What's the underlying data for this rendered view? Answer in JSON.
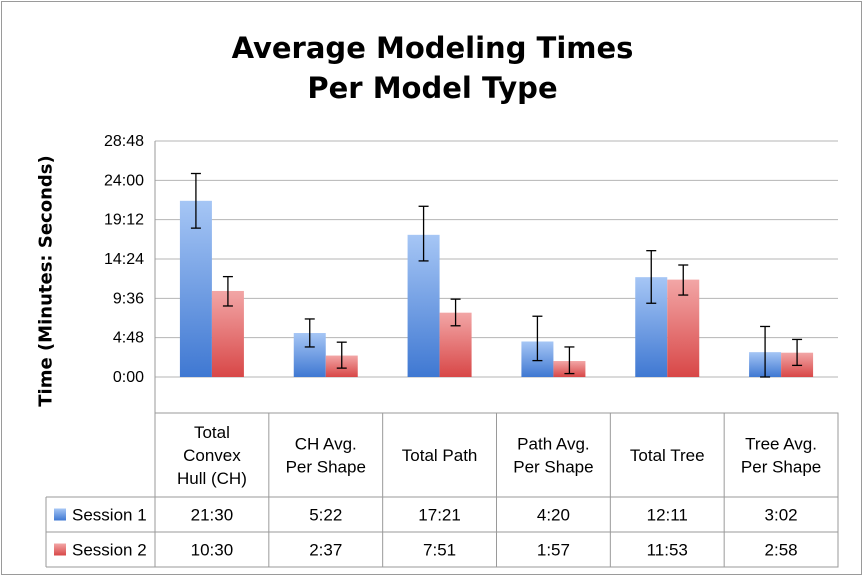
{
  "chart_data": {
    "type": "bar",
    "title_lines": [
      "Average Modeling Times",
      "Per Model Type"
    ],
    "ylabel": "Time (Minutes: Seconds)",
    "ylim_seconds": [
      0,
      1728
    ],
    "y_ticks": [
      {
        "label": "0:00",
        "seconds": 0
      },
      {
        "label": "4:48",
        "seconds": 288
      },
      {
        "label": "9:36",
        "seconds": 576
      },
      {
        "label": "14:24",
        "seconds": 864
      },
      {
        "label": "19:12",
        "seconds": 1152
      },
      {
        "label": "24:00",
        "seconds": 1440
      },
      {
        "label": "28:48",
        "seconds": 1728
      }
    ],
    "categories": [
      [
        "Total",
        "Convex",
        "Hull (CH)"
      ],
      [
        "CH Avg.",
        "Per Shape"
      ],
      [
        "Total Path"
      ],
      [
        "Path Avg.",
        "Per Shape"
      ],
      [
        "Total Tree"
      ],
      [
        "Tree Avg.",
        "Per Shape"
      ]
    ],
    "series": [
      {
        "name": "Session 1",
        "color": "#4a7fd4",
        "labels": [
          "21:30",
          "5:22",
          "17:21",
          "4:20",
          "12:11",
          "3:02"
        ],
        "values_seconds": [
          1290,
          322,
          1041,
          260,
          731,
          182
        ],
        "error_low_seconds": [
          1090,
          220,
          850,
          120,
          540,
          0
        ],
        "error_high_seconds": [
          1490,
          425,
          1250,
          445,
          925,
          370
        ]
      },
      {
        "name": "Session 2",
        "color": "#d94e4e",
        "labels": [
          "10:30",
          "2:37",
          "7:51",
          "1:57",
          "11:53",
          "2:58"
        ],
        "values_seconds": [
          630,
          157,
          471,
          117,
          713,
          178
        ],
        "error_low_seconds": [
          520,
          65,
          375,
          25,
          600,
          85
        ],
        "error_high_seconds": [
          735,
          255,
          570,
          220,
          820,
          275
        ]
      }
    ],
    "grid": true,
    "legend_placement": "data-table-left"
  }
}
